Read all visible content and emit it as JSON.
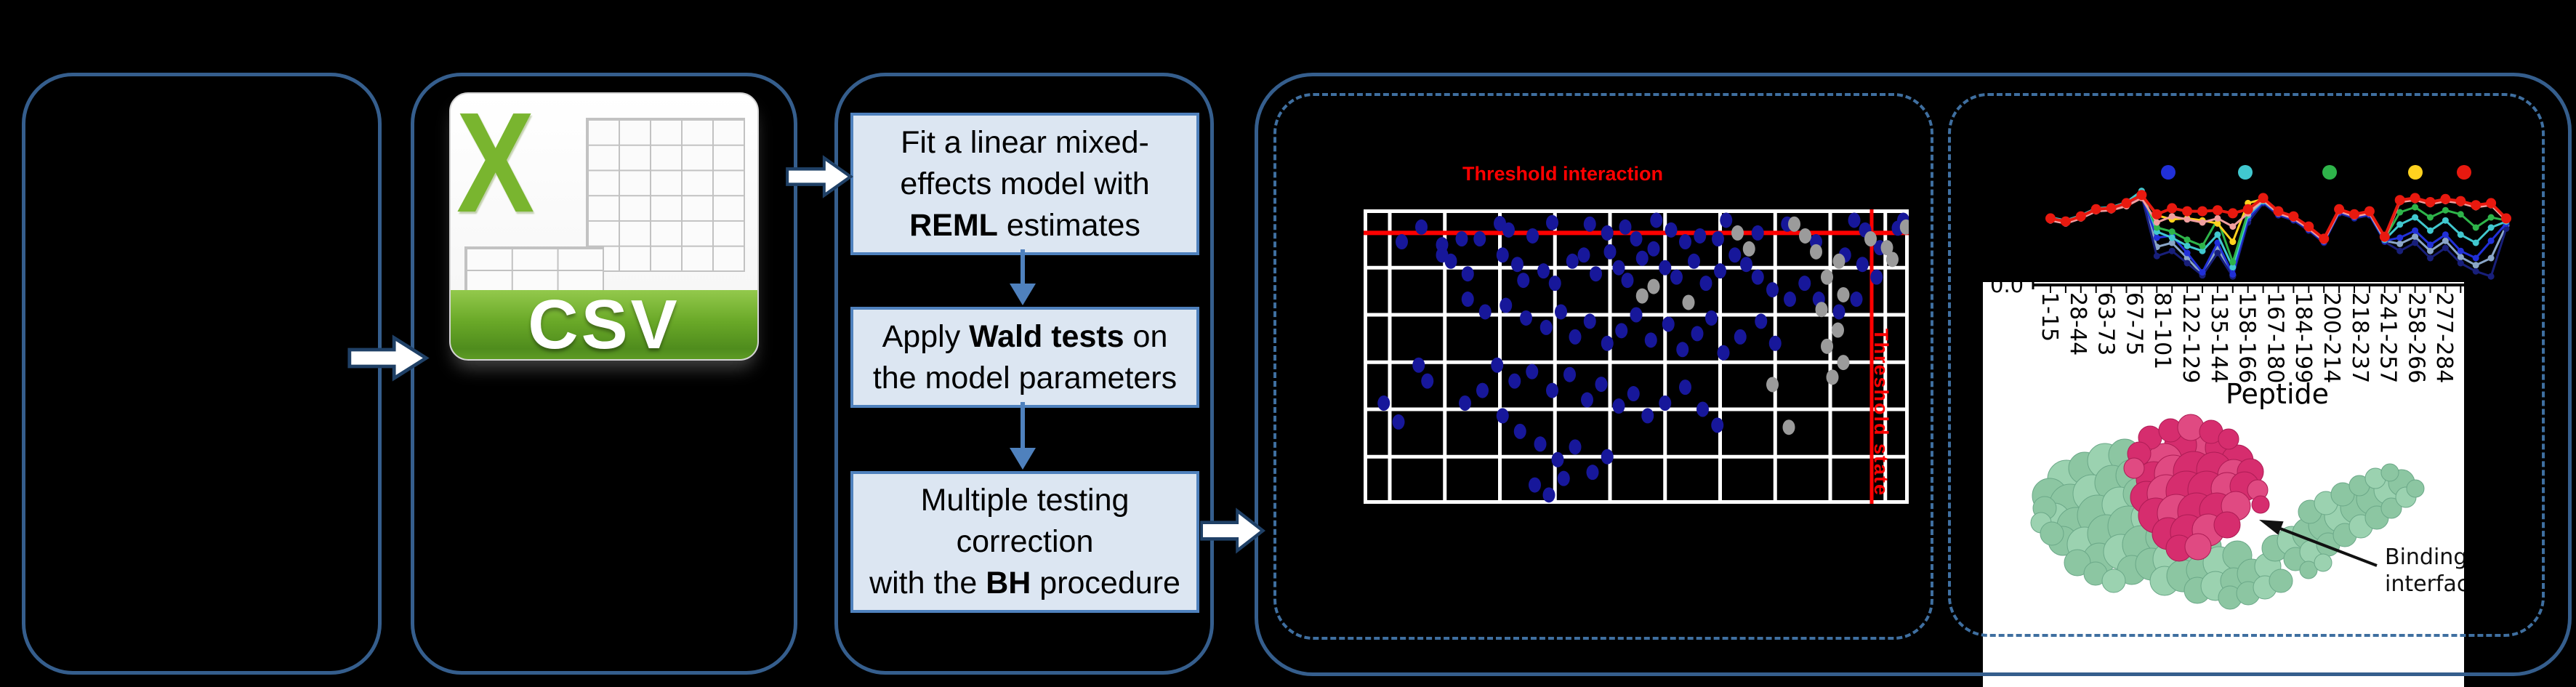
{
  "panel2": {
    "csv_x": "X",
    "csv_label": "CSV"
  },
  "panel3": {
    "steps": [
      {
        "id": "fit-model",
        "lines": [
          [
            {
              "t": "Fit a linear mixed-"
            }
          ],
          [
            {
              "t": "effects model with"
            }
          ],
          [
            {
              "t": "REML",
              "b": 1
            },
            {
              "t": " estimates"
            }
          ]
        ]
      },
      {
        "id": "wald-tests",
        "lines": [
          [
            {
              "t": "Apply "
            },
            {
              "t": "Wald tests",
              "b": 1
            },
            {
              "t": " on"
            }
          ],
          [
            {
              "t": "the model parameters"
            }
          ]
        ]
      },
      {
        "id": "bh-correction",
        "lines": [
          [
            {
              "t": "Multiple testing"
            }
          ],
          [
            {
              "t": "correction"
            }
          ],
          [
            {
              "t": "with the "
            },
            {
              "t": "BH",
              "b": 1
            },
            {
              "t": " procedure"
            }
          ]
        ]
      }
    ]
  },
  "panel4": {
    "title": "Threshold interaction",
    "side_label": "Threshold state",
    "chart_data": {
      "type": "scatter",
      "title": "Threshold interaction",
      "grid": {
        "v_frac": [
          0.048,
          0.149,
          0.25,
          0.351,
          0.452,
          0.553,
          0.654,
          0.755,
          0.856,
          0.957
        ],
        "h_frac": [
          0.198,
          0.358,
          0.519,
          0.679,
          0.84
        ]
      },
      "threshold_h_frac": 0.08,
      "threshold_v_frac": 0.932,
      "threshold_color": "#ff0000",
      "series": [
        {
          "name": "interaction-significant",
          "color": "#17179a",
          "points": [
            [
              7,
              11
            ],
            [
              10.6,
              6
            ],
            [
              14.4,
              12
            ],
            [
              18,
              10
            ],
            [
              21.3,
              10
            ],
            [
              25,
              4.8
            ],
            [
              26.6,
              7
            ],
            [
              31,
              9
            ],
            [
              34.6,
              4.5
            ],
            [
              41.5,
              5
            ],
            [
              44.7,
              8
            ],
            [
              48,
              6
            ],
            [
              50,
              10
            ],
            [
              53.7,
              3.7
            ],
            [
              56.4,
              7
            ],
            [
              59,
              11
            ],
            [
              61.7,
              9
            ],
            [
              65,
              10
            ],
            [
              66.5,
              3.7
            ],
            [
              72.3,
              8
            ],
            [
              77.7,
              5
            ],
            [
              83,
              11
            ],
            [
              90,
              3.7
            ],
            [
              92,
              7
            ],
            [
              94.7,
              13
            ],
            [
              98,
              6.4
            ],
            [
              99,
              3.7
            ],
            [
              14.4,
              15.5
            ],
            [
              16,
              17.6
            ],
            [
              19.1,
              21.9
            ],
            [
              25.5,
              15.5
            ],
            [
              28.2,
              18.7
            ],
            [
              29.3,
              24.1
            ],
            [
              33,
              20.9
            ],
            [
              35.1,
              25.1
            ],
            [
              38.3,
              17.6
            ],
            [
              40.4,
              15.5
            ],
            [
              42.6,
              21.9
            ],
            [
              45.2,
              14.4
            ],
            [
              46.8,
              19.8
            ],
            [
              48.4,
              24.1
            ],
            [
              51.1,
              16.6
            ],
            [
              53.2,
              13.4
            ],
            [
              55.3,
              19.8
            ],
            [
              57.4,
              23
            ],
            [
              60.6,
              17.6
            ],
            [
              62.8,
              25.1
            ],
            [
              65.4,
              20.9
            ],
            [
              68.1,
              15.5
            ],
            [
              70.2,
              18.7
            ],
            [
              72.3,
              23
            ],
            [
              75,
              27.3
            ],
            [
              78.2,
              30.5
            ],
            [
              80.9,
              25.1
            ],
            [
              83.5,
              30.5
            ],
            [
              88.3,
              15.5
            ],
            [
              91.5,
              18.7
            ],
            [
              94.1,
              23
            ],
            [
              90.4,
              30.5
            ],
            [
              19.1,
              30.5
            ],
            [
              22.3,
              34.8
            ],
            [
              26.1,
              32.6
            ],
            [
              29.8,
              36.9
            ],
            [
              33.5,
              40.1
            ],
            [
              36.2,
              34.8
            ],
            [
              38.8,
              43.3
            ],
            [
              41.5,
              38
            ],
            [
              44.7,
              45.5
            ],
            [
              47.3,
              41.2
            ],
            [
              50,
              35.8
            ],
            [
              52.7,
              44.4
            ],
            [
              55.9,
              39
            ],
            [
              58.5,
              47.6
            ],
            [
              61.2,
              42.2
            ],
            [
              63.8,
              36.9
            ],
            [
              66,
              48.7
            ],
            [
              69.1,
              43.3
            ],
            [
              72.9,
              38
            ],
            [
              75.5,
              45.5
            ],
            [
              87.2,
              34.8
            ],
            [
              24.5,
              52.9
            ],
            [
              27.7,
              58.3
            ],
            [
              30.9,
              55.1
            ],
            [
              34.6,
              61.5
            ],
            [
              37.8,
              56.1
            ],
            [
              41,
              64.7
            ],
            [
              43.6,
              59.4
            ],
            [
              46.8,
              66.8
            ],
            [
              49.5,
              62.6
            ],
            [
              52.1,
              70.1
            ],
            [
              55.3,
              65.8
            ],
            [
              59,
              60.4
            ],
            [
              62.2,
              67.9
            ],
            [
              64.9,
              73.3
            ],
            [
              10.1,
              52.9
            ],
            [
              11.7,
              58.3
            ],
            [
              18.6,
              65.8
            ],
            [
              21.8,
              61.5
            ],
            [
              25.5,
              70.1
            ],
            [
              3.7,
              65.8
            ],
            [
              6.4,
              72.2
            ],
            [
              28.7,
              75.4
            ],
            [
              32.4,
              79.7
            ],
            [
              35.6,
              85
            ],
            [
              38.8,
              80.7
            ],
            [
              42,
              89.3
            ],
            [
              44.7,
              84
            ],
            [
              31.4,
              93.6
            ],
            [
              34,
              97
            ],
            [
              36.7,
              91.4
            ]
          ]
        },
        {
          "name": "state-nonsignificant",
          "color": "#9b9b9b",
          "points": [
            [
              68.6,
              8
            ],
            [
              70.7,
              13.4
            ],
            [
              83,
              14.4
            ],
            [
              87.2,
              17.6
            ],
            [
              85,
              23
            ],
            [
              88,
              29
            ],
            [
              84,
              34
            ],
            [
              87,
              41
            ],
            [
              85,
              46.5
            ],
            [
              88,
              52
            ],
            [
              86,
              57
            ],
            [
              75,
              59.5
            ],
            [
              78,
              74
            ],
            [
              53.2,
              26.2
            ],
            [
              51.1,
              29.4
            ],
            [
              59.6,
              31.6
            ],
            [
              93,
              10
            ],
            [
              96,
              13
            ],
            [
              99.5,
              6
            ],
            [
              97,
              17
            ],
            [
              81,
              9
            ],
            [
              79,
              5
            ]
          ]
        }
      ]
    }
  },
  "panel5": {
    "y_tick_label": "0.0",
    "annotation": {
      "line1": "Binding",
      "line2": "interface"
    },
    "protein_colors": {
      "surface": "#8cc6a2",
      "peptide": "#d62d6e"
    },
    "chart_data": {
      "type": "line",
      "xlabel": "Peptide",
      "categories": [
        "1-15",
        "28-44",
        "63-73",
        "67-75",
        "81-101",
        "122-129",
        "135-144",
        "158-166",
        "167-180",
        "184-199",
        "200-214",
        "218-237",
        "241-257",
        "258-266",
        "277-284"
      ],
      "legend_dot_colors": [
        "#2130d8",
        "#41c8cf",
        "#2eb44a",
        "#ffd21f",
        "#e8190f"
      ],
      "series": [
        {
          "name": "exposure-steel",
          "color": "#8aa6c8",
          "w": 3,
          "r": 4.5,
          "values": [
            37,
            40,
            35,
            28,
            27,
            22,
            13,
            64,
            60,
            75,
            91,
            65,
            92,
            38,
            20,
            32,
            37,
            47,
            59,
            30,
            35,
            32,
            58,
            61,
            54,
            68,
            58,
            74,
            82,
            75,
            43
          ]
        },
        {
          "name": "exposure-navy",
          "color": "#181f7a",
          "w": 3,
          "r": 4.5,
          "values": [
            38,
            41,
            36,
            29,
            28,
            23,
            14,
            73,
            68,
            80,
            92,
            70,
            93,
            40,
            21,
            33,
            38,
            48,
            60,
            31,
            36,
            33,
            59,
            68,
            60,
            75,
            65,
            80,
            88,
            93,
            46
          ]
        },
        {
          "name": "exposure-blue",
          "color": "#2130d8",
          "w": 3,
          "r": 4.5,
          "values": [
            37,
            40,
            35,
            28,
            27,
            22,
            13,
            55,
            53,
            70,
            89,
            60,
            91,
            36,
            20,
            32,
            37,
            47,
            59,
            30,
            35,
            32,
            58,
            55,
            48,
            62,
            52,
            68,
            75,
            58,
            41
          ]
        },
        {
          "name": "exposure-cyan",
          "color": "#41c8cf",
          "w": 3,
          "r": 4.5,
          "values": [
            35,
            38,
            33,
            26,
            25,
            20,
            9,
            49,
            55,
            63,
            68,
            52,
            84,
            33,
            19,
            31,
            36,
            46,
            58,
            29,
            34,
            31,
            57,
            42,
            35,
            48,
            38,
            52,
            60,
            45,
            39
          ]
        },
        {
          "name": "exposure-green",
          "color": "#2eb44a",
          "w": 3,
          "r": 4.5,
          "values": [
            36,
            39,
            34,
            27,
            26,
            21,
            13,
            45,
            49,
            57,
            63,
            37,
            79,
            30,
            18,
            30,
            35,
            45,
            57,
            28,
            33,
            30,
            56,
            30,
            25,
            35,
            28,
            32,
            45,
            35,
            38
          ]
        },
        {
          "name": "exposure-yellow",
          "color": "#ffd21f",
          "w": 3,
          "r": 4.5,
          "values": [
            36,
            39,
            34,
            27,
            26,
            21,
            13,
            33,
            37,
            36,
            38,
            41,
            59,
            21,
            17,
            30,
            35,
            45,
            57,
            28,
            33,
            30,
            55,
            19,
            17,
            21,
            18,
            20,
            24,
            22,
            37
          ]
        },
        {
          "name": "exposure-salmon",
          "color": "#f2a0a0",
          "w": 3,
          "r": 4.5,
          "values": [
            38,
            41,
            36,
            29,
            28,
            24,
            16,
            40,
            34,
            37,
            40,
            36,
            44,
            31,
            18,
            31,
            36,
            46,
            58,
            29,
            34,
            31,
            56,
            20,
            18,
            22,
            19,
            21,
            25,
            23,
            38
          ]
        },
        {
          "name": "exposure-red",
          "color": "#e8190f",
          "w": 4,
          "r": 7,
          "values": [
            36,
            39,
            34,
            27,
            26,
            21,
            13,
            32,
            26,
            29,
            29,
            28,
            31,
            27,
            16,
            29,
            34,
            44,
            56,
            27,
            32,
            29,
            54,
            18,
            16,
            20,
            17,
            19,
            23,
            21,
            36
          ]
        }
      ]
    }
  }
}
